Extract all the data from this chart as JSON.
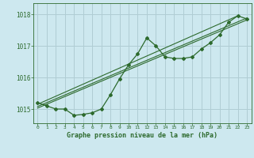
{
  "background_color": "#cde8ef",
  "grid_color": "#b0cdd4",
  "line_color": "#2d6a2d",
  "title": "Graphe pression niveau de la mer (hPa)",
  "xlim": [
    -0.5,
    23.5
  ],
  "ylim": [
    1014.55,
    1018.35
  ],
  "yticks": [
    1015,
    1016,
    1017,
    1018
  ],
  "xticks": [
    0,
    1,
    2,
    3,
    4,
    5,
    6,
    7,
    8,
    9,
    10,
    11,
    12,
    13,
    14,
    15,
    16,
    17,
    18,
    19,
    20,
    21,
    22,
    23
  ],
  "main_line_x": [
    0,
    1,
    2,
    3,
    4,
    5,
    6,
    7,
    8,
    9,
    10,
    11,
    12,
    13,
    14,
    15,
    16,
    17,
    18,
    19,
    20,
    21,
    22,
    23
  ],
  "main_line_y": [
    1015.2,
    1015.1,
    1015.0,
    1015.0,
    1014.8,
    1014.83,
    1014.88,
    1015.0,
    1015.45,
    1015.95,
    1016.4,
    1016.75,
    1017.25,
    1017.0,
    1016.65,
    1016.6,
    1016.6,
    1016.65,
    1016.9,
    1017.1,
    1017.35,
    1017.75,
    1017.95,
    1017.85
  ],
  "trend_line1_x": [
    0,
    22
  ],
  "trend_line1_y": [
    1015.15,
    1017.95
  ],
  "trend_line2_x": [
    0,
    23
  ],
  "trend_line2_y": [
    1015.08,
    1017.88
  ],
  "trend_line3_x": [
    0,
    23
  ],
  "trend_line3_y": [
    1015.03,
    1017.82
  ]
}
